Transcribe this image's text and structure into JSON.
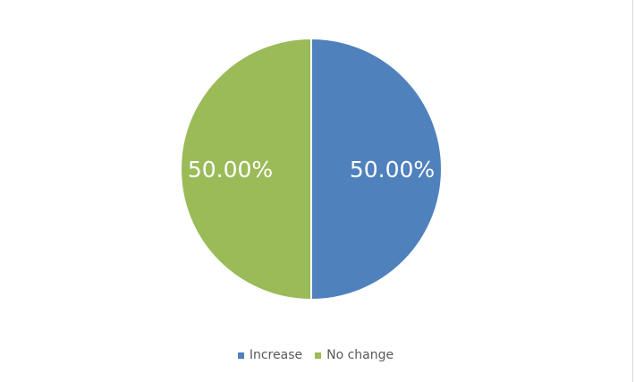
{
  "chart_data": {
    "type": "pie",
    "categories": [
      "Increase",
      "No change"
    ],
    "values": [
      50,
      50
    ],
    "data_labels": [
      "50.00%",
      "50.00%"
    ],
    "colors": [
      "#4f81bd",
      "#9bbb59"
    ],
    "legend_position": "bottom",
    "title": ""
  }
}
